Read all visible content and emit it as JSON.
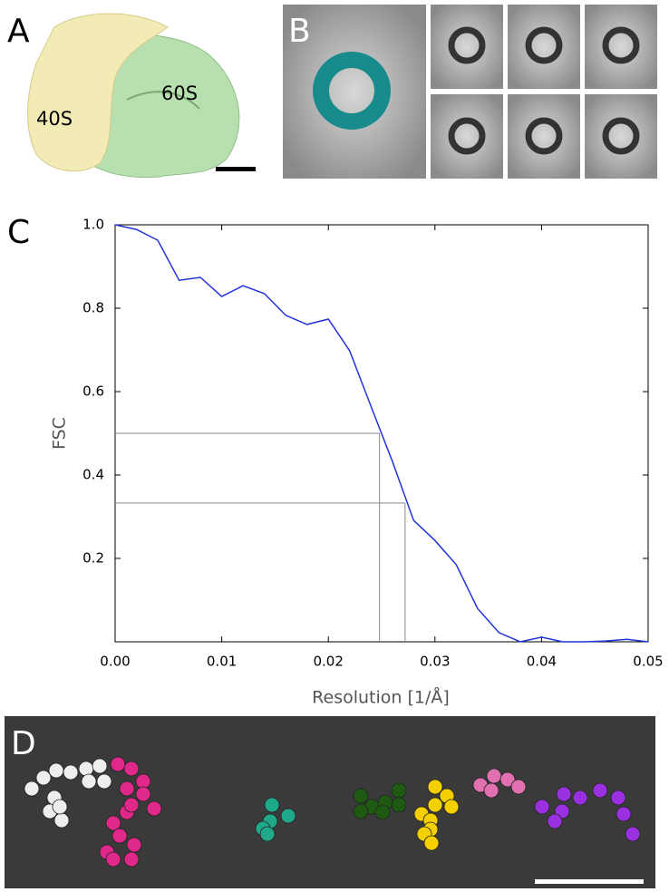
{
  "panel_labels": [
    "A",
    "B",
    "C",
    "D"
  ],
  "panel_a": {
    "labels": [
      "40S",
      "60S"
    ]
  },
  "chart_data": {
    "type": "line",
    "x_label": "Resolution [1/Å]",
    "y_label": "FSC",
    "x": [
      0,
      0.002,
      0.004,
      0.006,
      0.008,
      0.01,
      0.012,
      0.014,
      0.016,
      0.018,
      0.02,
      0.022,
      0.024,
      0.026,
      0.028,
      0.03,
      0.032,
      0.034,
      0.036,
      0.038,
      0.04,
      0.042,
      0.044,
      0.046,
      0.048,
      0.05
    ],
    "values": [
      1.0,
      0.989,
      0.963,
      0.867,
      0.874,
      0.828,
      0.854,
      0.835,
      0.783,
      0.761,
      0.774,
      0.698,
      0.565,
      0.433,
      0.291,
      0.243,
      0.185,
      0.08,
      0.022,
      0.0,
      0.011,
      0.0,
      0.0,
      0.002,
      0.006,
      0.0
    ],
    "color": "#2233dd",
    "thresholds": [
      {
        "fsc": 0.5,
        "resolution": 0.0248
      },
      {
        "fsc": 0.333,
        "resolution": 0.0272
      }
    ],
    "threshold_color": "#888888",
    "xlim": [
      0,
      0.05
    ],
    "ylim": [
      0,
      1.0
    ],
    "xticks": [
      {
        "value": 0,
        "label": "0.00"
      },
      0.01,
      0.02,
      0.03,
      0.04,
      0.05
    ],
    "yticks": [
      0.2,
      0.4,
      0.6,
      0.8,
      {
        "value": 1.0,
        "label": "1.0"
      }
    ]
  }
}
